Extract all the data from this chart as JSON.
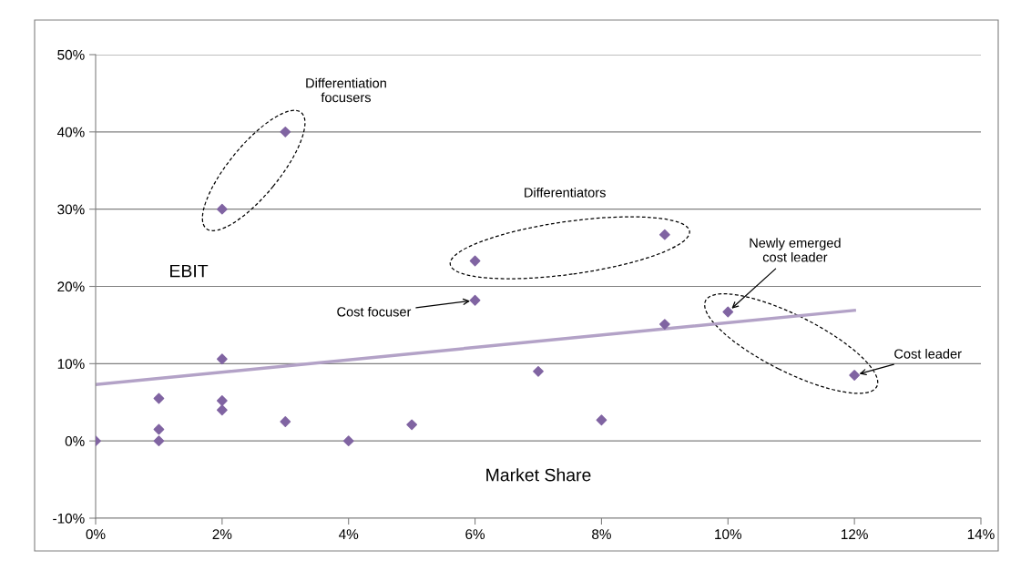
{
  "chart_data": {
    "type": "scatter",
    "xlabel": "Market Share",
    "ylabel": "EBIT",
    "xlim": [
      0,
      14
    ],
    "xticks": [
      {
        "value": 0,
        "label": "0%"
      },
      {
        "value": 2,
        "label": "2%"
      },
      {
        "value": 4,
        "label": "4%"
      },
      {
        "value": 6,
        "label": "6%"
      },
      {
        "value": 8,
        "label": "8%"
      },
      {
        "value": 10,
        "label": "10%"
      },
      {
        "value": 12,
        "label": "12%"
      },
      {
        "value": 14,
        "label": "14%"
      }
    ],
    "ylim": [
      -10,
      50
    ],
    "yticks": [
      {
        "value": -10,
        "label": "-10%"
      },
      {
        "value": 0,
        "label": "0%"
      },
      {
        "value": 10,
        "label": "10%"
      },
      {
        "value": 20,
        "label": "20%"
      },
      {
        "value": 30,
        "label": "30%"
      },
      {
        "value": 40,
        "label": "40%"
      },
      {
        "value": 50,
        "label": "50%"
      }
    ],
    "grid": "y",
    "marker": "diamond",
    "series": [
      {
        "color": "#8064a2",
        "x": [
          0,
          1,
          1,
          1,
          2,
          2,
          2,
          2,
          3,
          3,
          4,
          5,
          6,
          6,
          7,
          8,
          9,
          9,
          10,
          12
        ],
        "values": [
          0,
          5.5,
          1.5,
          0,
          10.6,
          5.2,
          4.0,
          30,
          40,
          2.5,
          0,
          2.1,
          23.3,
          18.2,
          9.0,
          2.7,
          26.7,
          15.1,
          16.7,
          8.5
        ]
      },
      {
        "type": "line",
        "color": "#b3a2c7",
        "x": [
          0,
          12
        ],
        "values": [
          7.3,
          16.9
        ],
        "marker": "none"
      }
    ],
    "annotations": [
      {
        "text": "Differentiation\nfocusers",
        "x": 3,
        "y": 40
      },
      "Differentiators",
      {
        "text": "Cost focuser",
        "x": 6,
        "y": 18.2
      },
      {
        "text": "Newly emerged\ncost leader",
        "x": 10,
        "y": 16.7
      },
      {
        "text": "Cost leader",
        "x": 12,
        "y": 8.5
      }
    ]
  }
}
